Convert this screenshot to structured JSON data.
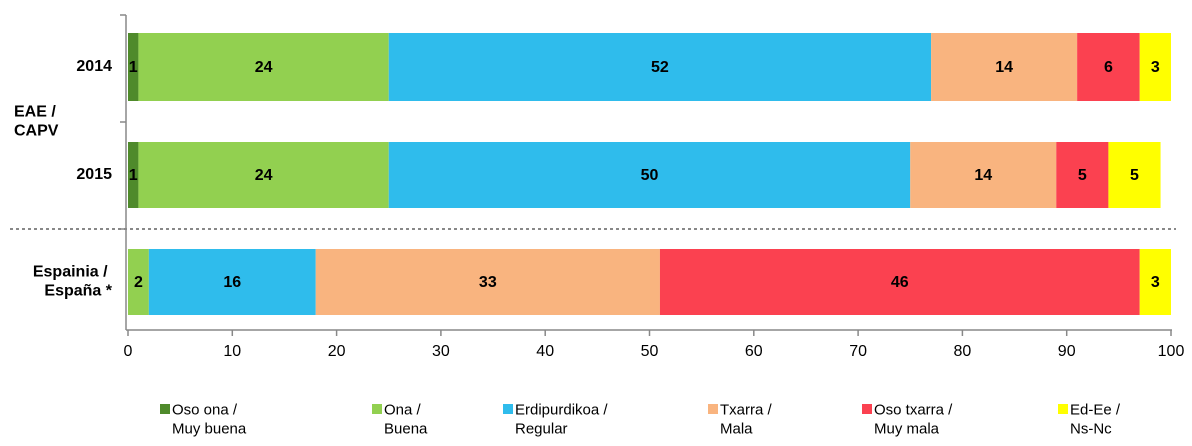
{
  "chart_data": {
    "type": "stacked-bar-horizontal",
    "group_label": "EAE / CAPV",
    "categories": [
      "2014",
      "2015",
      "Espainia / España *"
    ],
    "series": [
      {
        "name": "Oso ona / Muy buena",
        "color": "#4f8a2b",
        "values": [
          1,
          1,
          null
        ]
      },
      {
        "name": "Ona / Buena",
        "color": "#92d050",
        "values": [
          24,
          24,
          2
        ]
      },
      {
        "name": "Erdipurdikoa / Regular",
        "color": "#2fbcec",
        "values": [
          52,
          50,
          16
        ]
      },
      {
        "name": "Txarra / Mala",
        "color": "#f9b47f",
        "values": [
          14,
          14,
          33
        ]
      },
      {
        "name": "Oso txarra / Muy mala",
        "color": "#fb4150",
        "values": [
          6,
          5,
          46
        ]
      },
      {
        "name": "Ed-Ee / Ns-Nc",
        "color": "#ffff00",
        "values": [
          3,
          5,
          3
        ]
      }
    ],
    "xlim": [
      0,
      100
    ],
    "xticks": [
      0,
      10,
      20,
      30,
      40,
      50,
      60,
      70,
      80,
      90,
      100
    ],
    "legend": "bottom"
  }
}
